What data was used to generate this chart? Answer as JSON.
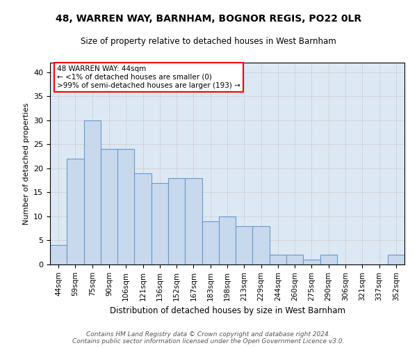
{
  "title1": "48, WARREN WAY, BARNHAM, BOGNOR REGIS, PO22 0LR",
  "title2": "Size of property relative to detached houses in West Barnham",
  "xlabel": "Distribution of detached houses by size in West Barnham",
  "ylabel": "Number of detached properties",
  "categories": [
    "44sqm",
    "59sqm",
    "75sqm",
    "90sqm",
    "106sqm",
    "121sqm",
    "136sqm",
    "152sqm",
    "167sqm",
    "183sqm",
    "198sqm",
    "213sqm",
    "229sqm",
    "244sqm",
    "260sqm",
    "275sqm",
    "290sqm",
    "306sqm",
    "321sqm",
    "337sqm",
    "352sqm"
  ],
  "values": [
    4,
    22,
    30,
    24,
    24,
    19,
    17,
    18,
    18,
    9,
    10,
    8,
    8,
    2,
    2,
    1,
    2,
    0,
    0,
    0,
    2
  ],
  "bar_color": "#c8d9ed",
  "bar_edge_color": "#6699cc",
  "annotation_text": "48 WARREN WAY: 44sqm\n← <1% of detached houses are smaller (0)\n>99% of semi-detached houses are larger (193) →",
  "annotation_box_color": "white",
  "annotation_box_edge_color": "red",
  "footer_text": "Contains HM Land Registry data © Crown copyright and database right 2024.\nContains public sector information licensed under the Open Government Licence v3.0.",
  "ylim": [
    0,
    42
  ],
  "yticks": [
    0,
    5,
    10,
    15,
    20,
    25,
    30,
    35,
    40
  ],
  "grid_color": "#cccccc",
  "background_color": "#dde8f5"
}
